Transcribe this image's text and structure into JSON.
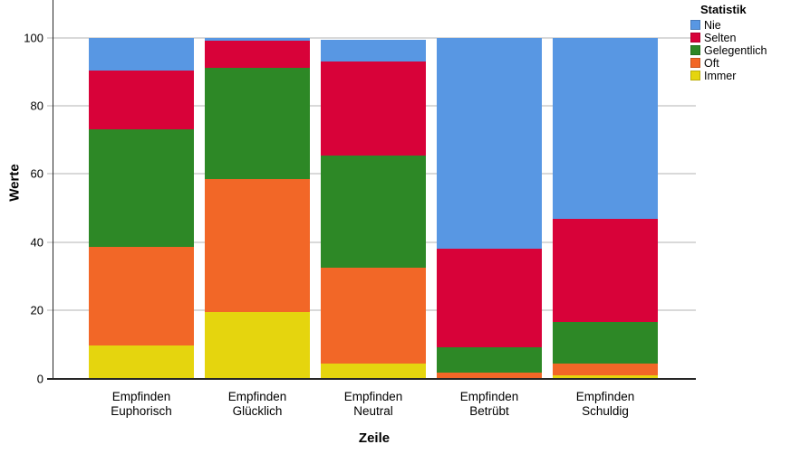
{
  "figure": {
    "y_axis_title": "Werte",
    "x_axis_title": "Zeile",
    "legend": {
      "title": "Statistik",
      "items": [
        {
          "label": "Nie",
          "color": "#5897E3"
        },
        {
          "label": "Selten",
          "color": "#D80239"
        },
        {
          "label": "Gelegentlich",
          "color": "#2D8826"
        },
        {
          "label": "Oft",
          "color": "#F26727"
        },
        {
          "label": "Immer",
          "color": "#E5D50E"
        }
      ]
    }
  },
  "chart_data": {
    "type": "bar",
    "stacked": true,
    "units": "percent",
    "title": "",
    "xlabel": "Zeile",
    "ylabel": "Werte",
    "ylim": [
      0,
      110
    ],
    "yticks": [
      0,
      20,
      40,
      60,
      80,
      100
    ],
    "grid": true,
    "gridline_color": "#D9D9D9",
    "axis_color": "#262626",
    "legend_position": "top-right",
    "legend_title": "Statistik",
    "categories": [
      "Empfinden Euphorisch",
      "Empfinden Glücklich",
      "Empfinden Neutral",
      "Empfinden Betrübt",
      "Empfinden Schuldig"
    ],
    "category_label_lines": [
      [
        "Empfinden",
        "Euphorisch"
      ],
      [
        "Empfinden",
        "Glücklich"
      ],
      [
        "Empfinden",
        "Neutral"
      ],
      [
        "Empfinden",
        "Betrübt"
      ],
      [
        "Empfinden",
        "Schuldig"
      ]
    ],
    "stack_order_note": "series listed bottom-to-top of each stacked bar",
    "series": [
      {
        "name": "Immer",
        "color": "#E5D50E",
        "values": [
          9.6,
          19.4,
          4.3,
          0.0,
          1.0
        ]
      },
      {
        "name": "Oft",
        "color": "#F26727",
        "values": [
          28.9,
          39.1,
          28.2,
          1.7,
          3.5
        ]
      },
      {
        "name": "Gelegentlich",
        "color": "#2D8826",
        "values": [
          34.7,
          32.5,
          33.0,
          7.5,
          12.1
        ]
      },
      {
        "name": "Selten",
        "color": "#D80239",
        "values": [
          17.2,
          8.0,
          27.5,
          28.9,
          30.3
        ]
      },
      {
        "name": "Nie",
        "color": "#5897E3",
        "values": [
          9.6,
          0.8,
          6.4,
          61.9,
          53.1
        ]
      }
    ]
  }
}
